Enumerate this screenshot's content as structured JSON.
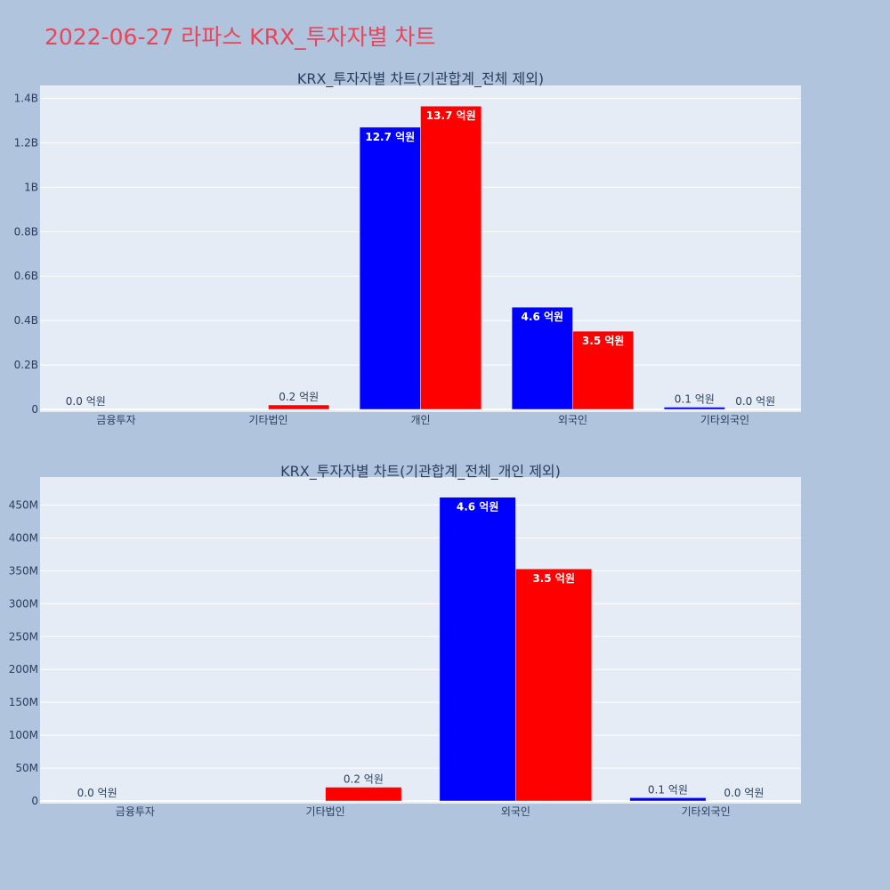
{
  "page": {
    "title": "2022-06-27 라파스 KRX_투자자별 차트"
  },
  "colors": {
    "background": "#b0c4de",
    "plot_bg": "#e5ecf6",
    "title": "#e8465a",
    "buy": "#0000ff",
    "sell": "#ff0000",
    "text": "#2a3f5f"
  },
  "chart_data": [
    {
      "type": "bar",
      "title": "KRX_투자자별 차트(기관합계_전체 제외)",
      "categories": [
        "금융투자",
        "기타법인",
        "개인",
        "외국인",
        "기타외국인"
      ],
      "ylim": [
        0,
        1.45
      ],
      "yticks": [
        0,
        0.2,
        0.4,
        0.6,
        0.8,
        1.0,
        1.2,
        1.4
      ],
      "ytick_labels": [
        "0",
        "0.2B",
        "0.4B",
        "0.6B",
        "0.8B",
        "1B",
        "1.2B",
        "1.4B"
      ],
      "grid": true,
      "series": [
        {
          "color": "#0000ff",
          "values": [
            0.0,
            0.0,
            1.27,
            0.46,
            0.01
          ],
          "labels": [
            "0.0 억원",
            "",
            "12.7 억원",
            "4.6 억원",
            "0.1 억원"
          ]
        },
        {
          "color": "#ff0000",
          "values": [
            0.0,
            0.02,
            1.365,
            0.352,
            0.0
          ],
          "labels": [
            "",
            "0.2 억원",
            "13.7 억원",
            "3.5 억원",
            "0.0 억원"
          ]
        }
      ]
    },
    {
      "type": "bar",
      "title": "KRX_투자자별 차트(기관합계_전체_개인 제외)",
      "categories": [
        "금융투자",
        "기타법인",
        "외국인",
        "기타외국인"
      ],
      "ylim": [
        0,
        490
      ],
      "yticks": [
        0,
        50,
        100,
        150,
        200,
        250,
        300,
        350,
        400,
        450
      ],
      "ytick_labels": [
        "0",
        "50M",
        "100M",
        "150M",
        "200M",
        "250M",
        "300M",
        "350M",
        "400M",
        "450M"
      ],
      "grid": true,
      "series": [
        {
          "color": "#0000ff",
          "values": [
            0,
            0,
            462,
            5
          ],
          "labels": [
            "0.0 억원",
            "",
            "4.6 억원",
            "0.1 억원"
          ]
        },
        {
          "color": "#ff0000",
          "values": [
            0,
            21,
            353,
            0
          ],
          "labels": [
            "",
            "0.2 억원",
            "3.5 억원",
            "0.0 억원"
          ]
        }
      ]
    }
  ]
}
